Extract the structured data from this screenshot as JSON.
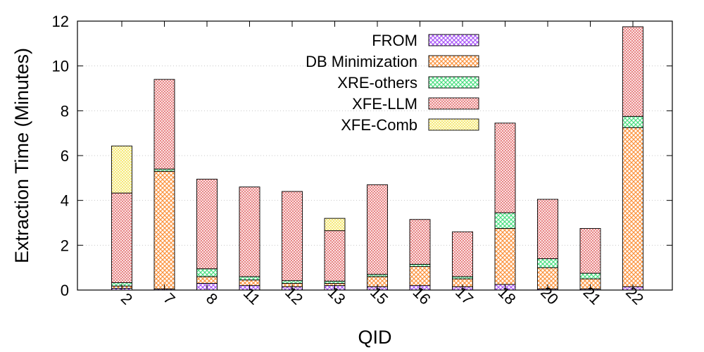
{
  "chart_data": {
    "type": "bar",
    "stacked": true,
    "xlabel": "QID",
    "ylabel": "Extraction Time (Minutes)",
    "ylim": [
      0,
      12
    ],
    "yticks": [
      0,
      2,
      4,
      6,
      8,
      10,
      12
    ],
    "grid": "horizontal dotted",
    "legend_position": "top-center",
    "categories": [
      "2",
      "7",
      "8",
      "11",
      "12",
      "13",
      "15",
      "16",
      "17",
      "18",
      "20",
      "21",
      "22"
    ],
    "series": [
      {
        "name": "FROM",
        "color": "#a855f7",
        "values": [
          0.08,
          0.05,
          0.3,
          0.2,
          0.15,
          0.2,
          0.15,
          0.2,
          0.15,
          0.25,
          0.05,
          0.05,
          0.15
        ]
      },
      {
        "name": "DB Minimization",
        "color": "#fb923c",
        "values": [
          0.1,
          5.25,
          0.3,
          0.25,
          0.15,
          0.1,
          0.45,
          0.85,
          0.35,
          2.5,
          0.95,
          0.45,
          7.1
        ]
      },
      {
        "name": "XRE-others",
        "color": "#4ade80",
        "values": [
          0.15,
          0.1,
          0.35,
          0.15,
          0.12,
          0.1,
          0.1,
          0.1,
          0.1,
          0.7,
          0.4,
          0.25,
          0.5
        ]
      },
      {
        "name": "XFE-LLM",
        "color": "#e57373",
        "values": [
          4.0,
          4.0,
          4.0,
          4.0,
          3.98,
          2.25,
          4.0,
          2.0,
          2.0,
          4.0,
          2.65,
          2.0,
          4.0
        ]
      },
      {
        "name": "XFE-Comb",
        "color": "#f5e663",
        "values": [
          2.1,
          0,
          0,
          0,
          0,
          0.55,
          0,
          0,
          0,
          0,
          0,
          0,
          0
        ]
      }
    ]
  }
}
